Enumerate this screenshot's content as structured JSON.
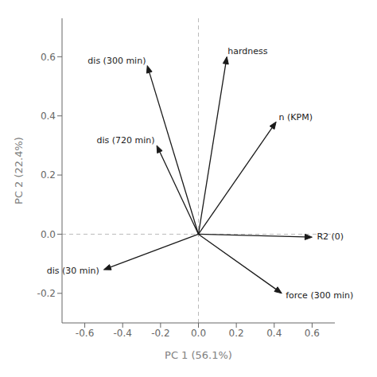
{
  "chart_data": {
    "type": "arrows",
    "x_label": "PC 1 (56.1%)",
    "y_label": "PC 2 (22.4%)",
    "x": [
      -0.27,
      -0.22,
      -0.5,
      0.15,
      0.41,
      0.6,
      0.44
    ],
    "values": [
      0.57,
      0.3,
      -0.12,
      0.6,
      0.38,
      -0.01,
      -0.2
    ],
    "annotations": [
      "dis (300 min)",
      "dis (720 min)",
      "dis (30 min)",
      "hardness",
      "n (KPM)",
      "R2 (0)",
      "force (300 min)"
    ],
    "color": "#1a1a1a",
    "xlim": [
      -0.72,
      0.72
    ],
    "ylim": [
      -0.3,
      0.73
    ],
    "xticks": [
      -0.6,
      -0.4,
      -0.2,
      {
        "value": 0,
        "label": "0.0"
      },
      0.2,
      0.4,
      0.6
    ],
    "yticks": [
      -0.2,
      {
        "value": 0,
        "label": "0.0"
      },
      0.2,
      0.4,
      0.6
    ],
    "grid": false
  }
}
